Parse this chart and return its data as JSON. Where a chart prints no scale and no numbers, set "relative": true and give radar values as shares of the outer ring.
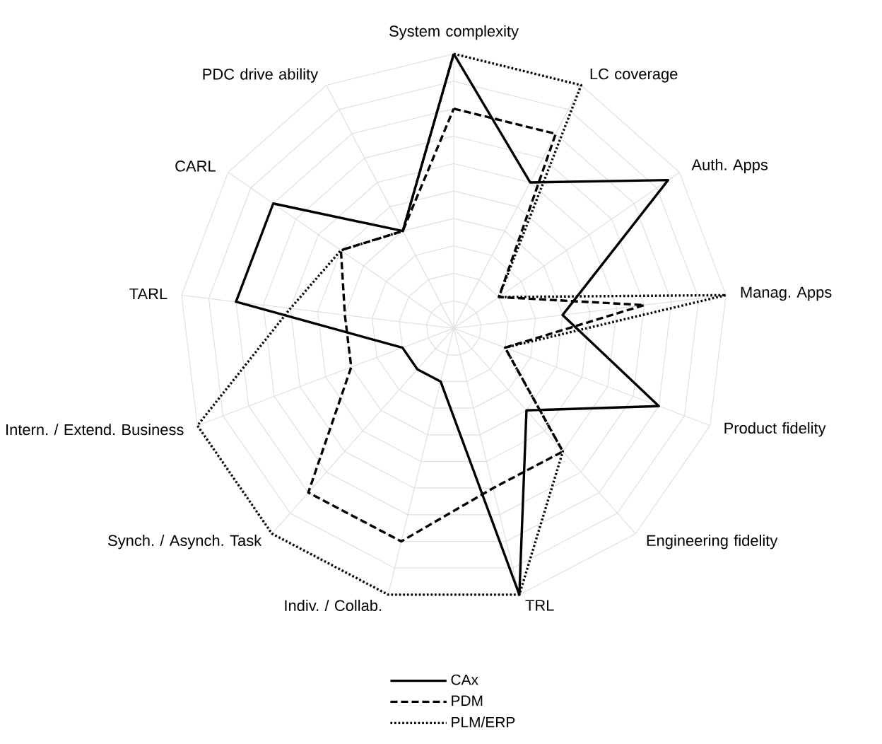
{
  "chart_data": {
    "type": "radar",
    "relative": true,
    "legend": "bottom",
    "categories": [
      "System complexity",
      "LC coverage",
      "Auth. Apps",
      "Manag. Apps",
      "Product fidelity",
      "Engineering fidelity",
      "TRL",
      "Indiv. / Collab.",
      "Synch. / Asynch. Task",
      "Intern. / Extend. Business",
      "TARL",
      "CARL",
      "PDC drive ability"
    ],
    "series": [
      {
        "name": "CAx",
        "color": "#000000",
        "line_style": "solid",
        "values": [
          1.0,
          0.6,
          0.95,
          0.4,
          0.8,
          0.4,
          1.0,
          0.2,
          0.2,
          0.2,
          0.8,
          0.8,
          0.4
        ]
      },
      {
        "name": "PDM",
        "color": "#000000",
        "line_style": "dashed",
        "values": [
          0.8,
          0.8,
          0.2,
          0.7,
          0.2,
          0.6,
          0.6,
          0.8,
          0.8,
          0.4,
          0.4,
          0.5,
          0.4
        ]
      },
      {
        "name": "PLM/ERP",
        "color": "#000000",
        "line_style": "dotted",
        "values": [
          1.0,
          1.0,
          0.2,
          1.0,
          0.2,
          0.6,
          1.0,
          1.0,
          1.0,
          1.0,
          0.6,
          0.5,
          0.4
        ]
      }
    ]
  }
}
